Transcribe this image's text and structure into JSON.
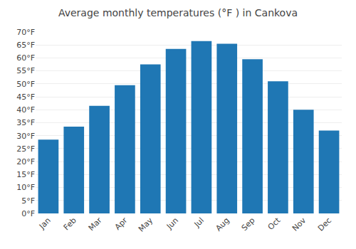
{
  "chart_data": {
    "type": "bar",
    "title": "Average monthly temperatures (°F ) in Cankova",
    "categories": [
      "Jan",
      "Feb",
      "Mar",
      "Apr",
      "May",
      "Jun",
      "Jul",
      "Aug",
      "Sep",
      "Oct",
      "Nov",
      "Dec"
    ],
    "values": [
      28.5,
      33.5,
      41.5,
      49.5,
      57.5,
      63.5,
      66.5,
      65.5,
      59.5,
      51.0,
      40.0,
      32.0
    ],
    "ylim": [
      0,
      70
    ],
    "yticks": [
      {
        "value": 0,
        "label": "0°F"
      },
      {
        "value": 5,
        "label": "5°F"
      },
      {
        "value": 10,
        "label": "10°F"
      },
      {
        "value": 15,
        "label": "15°F"
      },
      {
        "value": 20,
        "label": "20°F"
      },
      {
        "value": 25,
        "label": "25°F"
      },
      {
        "value": 30,
        "label": "30°F"
      },
      {
        "value": 35,
        "label": "35°F"
      },
      {
        "value": 40,
        "label": "40°F"
      },
      {
        "value": 45,
        "label": "45°F"
      },
      {
        "value": 50,
        "label": "50°F"
      },
      {
        "value": 55,
        "label": "55°F"
      },
      {
        "value": 60,
        "label": "60°F"
      },
      {
        "value": 65,
        "label": "65°F"
      },
      {
        "value": 70,
        "label": "70°F"
      }
    ],
    "grid": true
  }
}
